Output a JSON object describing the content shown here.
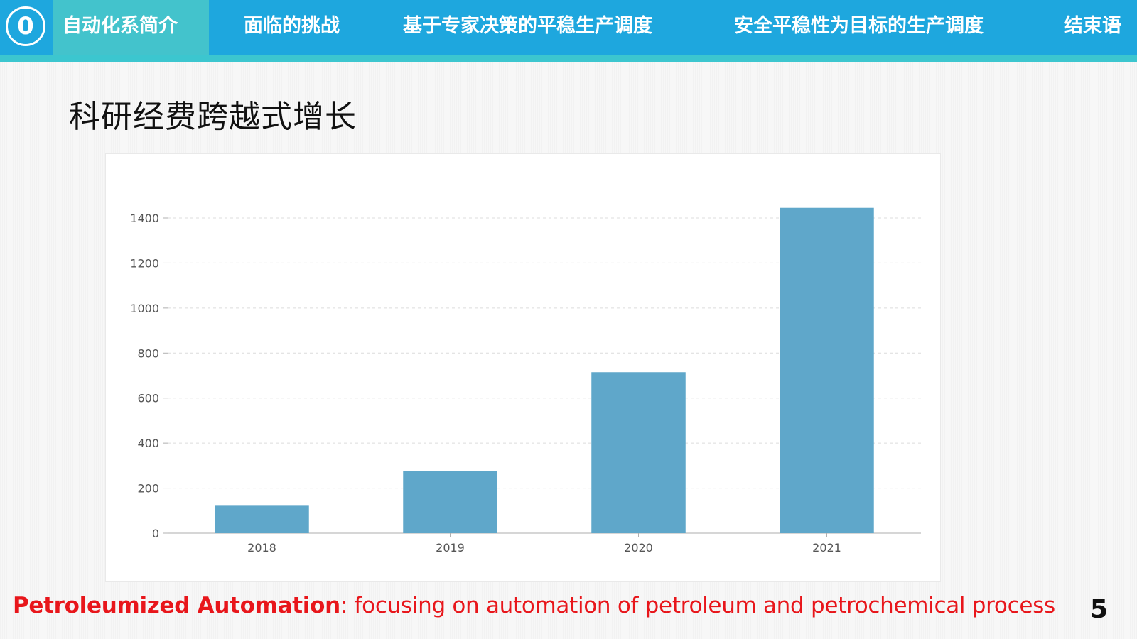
{
  "nav": {
    "badge": "0",
    "items": [
      {
        "label": "自动化系简介"
      },
      {
        "label": "面临的挑战"
      },
      {
        "label": "基于专家决策的平稳生产调度"
      },
      {
        "label": "安全平稳性为目标的生产调度"
      },
      {
        "label": "结束语"
      }
    ]
  },
  "slide": {
    "title": "科研经费跨越式增长",
    "page_number": "5"
  },
  "footer": {
    "strong": "Petroleumized Automation",
    "rest": ": focusing on automation of petroleum and petrochemical process"
  },
  "colors": {
    "bar": "#5fa7ca",
    "nav_bg": "#1ea7de",
    "nav_active": "#43c3cc",
    "footer_text": "#e8161b"
  },
  "chart_data": {
    "type": "bar",
    "categories": [
      "2018",
      "2019",
      "2020",
      "2021"
    ],
    "values": [
      125,
      275,
      715,
      1445
    ],
    "ylim": [
      0,
      1400
    ],
    "yticks": [
      0,
      200,
      400,
      600,
      800,
      1000,
      1200,
      1400
    ],
    "grid": true,
    "title": "",
    "xlabel": "",
    "ylabel": ""
  }
}
